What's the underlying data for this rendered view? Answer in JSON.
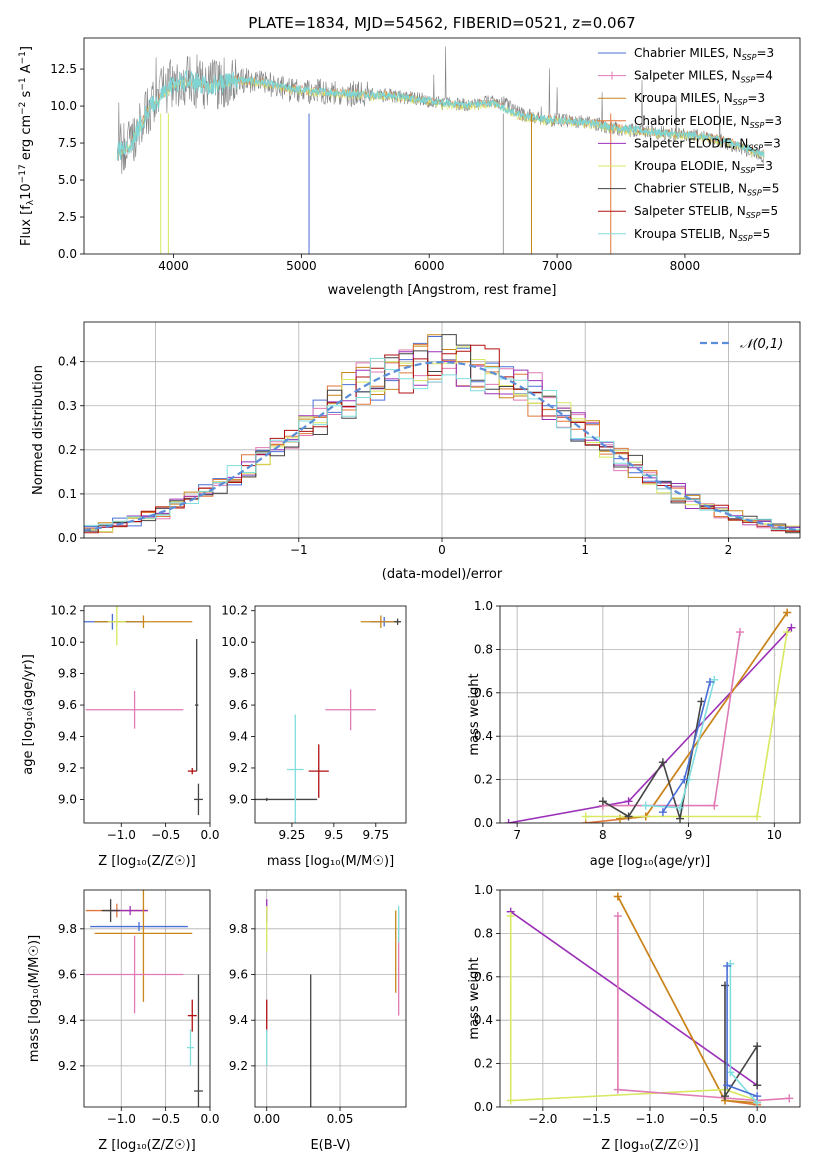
{
  "figure_title": "PLATE=1834, MJD=54562, FIBERID=0521, z=0.067",
  "legend_entries": [
    {
      "name": "Chabrier MILES",
      "nssp": "3",
      "color": "#4a6fd6"
    },
    {
      "name": "Salpeter MILES",
      "nssp": "4",
      "color": "#e07ab5"
    },
    {
      "name": "Kroupa MILES",
      "nssp": "3",
      "color": "#c8861a"
    },
    {
      "name": "Chabrier ELODIE",
      "nssp": "3",
      "color": "#e0773a"
    },
    {
      "name": "Salpeter ELODIE",
      "nssp": "3",
      "color": "#9b30b8"
    },
    {
      "name": "Kroupa ELODIE",
      "nssp": "3",
      "color": "#d8e860"
    },
    {
      "name": "Chabrier STELIB",
      "nssp": "5",
      "color": "#444444"
    },
    {
      "name": "Salpeter STELIB",
      "nssp": "5",
      "color": "#b01010"
    },
    {
      "name": "Kroupa STELIB",
      "nssp": "5",
      "color": "#80dede"
    }
  ],
  "colors": {
    "data": "#808080",
    "normal_curve": "#5b8ed8",
    "grid": "#b0b0b0",
    "model_main": "#7fd4d4"
  },
  "chart_data": [
    {
      "id": "spectrum",
      "type": "line",
      "title": "PLATE=1834, MJD=54562, FIBERID=0521, z=0.067",
      "xlabel": "wavelength [Angstrom, rest frame]",
      "ylabel": "Flux [f_λ10^-17 erg cm^-2 s^-1 A^-1]",
      "xlim": [
        3300,
        8900
      ],
      "ylim": [
        0,
        14.6
      ],
      "xticks": [
        4000,
        5000,
        6000,
        7000,
        8000
      ],
      "yticks": [
        0.0,
        2.5,
        5.0,
        7.5,
        10.0,
        12.5
      ],
      "grid": false,
      "legend": "top-right",
      "series": [
        {
          "name": "data",
          "x": [
            3560,
            3650,
            3800,
            3900,
            4000,
            4100,
            4300,
            4500,
            4700,
            4900,
            5100,
            5300,
            5500,
            5700,
            5900,
            6100,
            6300,
            6500,
            6600,
            6700,
            6900,
            7100,
            7300,
            7400,
            7500,
            7700,
            7900,
            8100,
            8300,
            8500,
            8600
          ],
          "y": [
            7.0,
            7.3,
            9.8,
            10.8,
            11.6,
            11.7,
            11.4,
            11.8,
            11.6,
            11.1,
            11.0,
            10.9,
            10.8,
            10.7,
            10.5,
            10.2,
            10.1,
            10.3,
            10.2,
            9.5,
            9.1,
            9.0,
            8.8,
            8.6,
            8.4,
            8.3,
            8.1,
            8.0,
            7.6,
            7.0,
            6.6
          ]
        },
        {
          "name": "model",
          "x": [
            3560,
            3650,
            3800,
            3900,
            4000,
            4100,
            4300,
            4500,
            4700,
            4900,
            5100,
            5300,
            5500,
            5700,
            5900,
            6100,
            6300,
            6500,
            6700,
            6900,
            7100,
            7300,
            7500,
            7700,
            7900,
            8100,
            8300,
            8500,
            8600
          ],
          "y": [
            6.9,
            7.2,
            9.7,
            10.6,
            11.5,
            11.7,
            11.4,
            11.8,
            11.6,
            11.2,
            11.0,
            10.9,
            10.8,
            10.7,
            10.5,
            10.2,
            10.1,
            10.2,
            9.4,
            9.1,
            9.0,
            8.8,
            8.5,
            8.3,
            8.1,
            8.0,
            7.7,
            7.1,
            6.8
          ]
        }
      ]
    },
    {
      "id": "residuals",
      "type": "bar",
      "xlabel": "(data-model)/error",
      "ylabel": "Normed distribution",
      "xlim": [
        -2.5,
        2.5
      ],
      "ylim": [
        0,
        0.49
      ],
      "xticks": [
        -2,
        -1,
        0,
        1,
        2
      ],
      "yticks": [
        0.0,
        0.1,
        0.2,
        0.3,
        0.4
      ],
      "grid": true,
      "legend": "top-right",
      "legend_label": "𝒩(0,1)",
      "bin_edges_start": -2.5,
      "bin_width": 0.1
    },
    {
      "id": "age-vs-Z",
      "type": "scatter",
      "xlabel": "Z [log₁₀(Z/Z☉)]",
      "ylabel": "age  [log₁₀(age/yr)]",
      "xlim": [
        -1.42,
        0.0
      ],
      "ylim": [
        8.85,
        10.23
      ],
      "xticks": [
        -1.0,
        -0.5,
        0.0
      ],
      "xticklabels": [
        "−1.0",
        "−0.5",
        "0.0"
      ],
      "yticks": [
        9.0,
        9.2,
        9.4,
        9.6,
        9.8,
        10.0,
        10.2
      ],
      "grid": false,
      "points": [
        {
          "series": "Chabrier MILES",
          "x": -1.1,
          "y": 10.13,
          "xerr": 0.35,
          "yerr": 0.05
        },
        {
          "series": "Kroupa MILES",
          "x": -0.75,
          "y": 10.13,
          "xerr": 0.55,
          "yerr": 0.04
        },
        {
          "series": "Salpeter MILES",
          "x": -0.85,
          "y": 9.57,
          "xerr": 0.55,
          "yerr": 0.12
        },
        {
          "series": "Chabrier STELIB",
          "x": -0.13,
          "y": 9.0,
          "xerr": 0.05,
          "yerr": 0.1
        },
        {
          "series": "Salpeter STELIB",
          "x": -0.2,
          "y": 9.18,
          "xerr": 0.05,
          "yerr": 0.02
        },
        {
          "series": "Kroupa ELODIE",
          "x": -1.05,
          "y": 10.13,
          "xerr": 0.1,
          "yerr": 0.15
        },
        {
          "series": "Chabrier STELIB",
          "x": -0.15,
          "y": 9.6,
          "xerr": 0.02,
          "yerr": 0.42
        }
      ]
    },
    {
      "id": "age-vs-mass",
      "type": "scatter",
      "xlabel": "mass [log₁₀(M/M☉)]",
      "ylabel": "",
      "xlim": [
        9.03,
        9.93
      ],
      "ylim": [
        8.85,
        10.23
      ],
      "xticks": [
        9.25,
        9.5,
        9.75
      ],
      "yticks": [
        9.0,
        9.2,
        9.4,
        9.6,
        9.8,
        10.0,
        10.2
      ],
      "grid": false,
      "points": [
        {
          "series": "Chabrier STELIB",
          "x": 9.1,
          "y": 9.0,
          "xerr": 0.3,
          "yerr": 0.01
        },
        {
          "series": "Kroupa STELIB",
          "x": 9.27,
          "y": 9.19,
          "xerr": 0.05,
          "yerr": 0.35
        },
        {
          "series": "Salpeter STELIB",
          "x": 9.41,
          "y": 9.18,
          "xerr": 0.06,
          "yerr": 0.17
        },
        {
          "series": "Salpeter MILES",
          "x": 9.6,
          "y": 9.57,
          "xerr": 0.15,
          "yerr": 0.13
        },
        {
          "series": "Chabrier MILES",
          "x": 9.8,
          "y": 10.13,
          "xerr": 0.08,
          "yerr": 0.03
        },
        {
          "series": "Kroupa MILES",
          "x": 9.78,
          "y": 10.13,
          "xerr": 0.12,
          "yerr": 0.04
        },
        {
          "series": "Chabrier STELIB",
          "x": 9.88,
          "y": 10.13,
          "xerr": 0.02,
          "yerr": 0.02
        }
      ]
    },
    {
      "id": "weight-vs-age",
      "type": "line",
      "xlabel": "age  [log₁₀(age/yr)]",
      "ylabel": "mass weight",
      "xlim": [
        6.8,
        10.3
      ],
      "ylim": [
        0,
        1.0
      ],
      "xticks": [
        7,
        8,
        9,
        10
      ],
      "yticks": [
        0.0,
        0.2,
        0.4,
        0.6,
        0.8,
        1.0
      ],
      "grid": true,
      "series": [
        {
          "name": "Salpeter ELODIE",
          "x": [
            6.9,
            8.3,
            10.2
          ],
          "y": [
            0.0,
            0.1,
            0.9
          ]
        },
        {
          "name": "Chabrier ELODIE",
          "x": [
            7.8,
            8.5,
            10.15
          ],
          "y": [
            0.0,
            0.03,
            0.97
          ]
        },
        {
          "name": "Kroupa MILES",
          "x": [
            8.2,
            8.5,
            10.15
          ],
          "y": [
            0.02,
            0.03,
            0.97
          ]
        },
        {
          "name": "Kroupa ELODIE",
          "x": [
            7.8,
            9.8,
            10.15
          ],
          "y": [
            0.03,
            0.03,
            0.88
          ]
        },
        {
          "name": "Salpeter MILES",
          "x": [
            8.0,
            9.3,
            9.6
          ],
          "y": [
            0.08,
            0.08,
            0.88
          ]
        },
        {
          "name": "Chabrier STELIB",
          "x": [
            8.0,
            8.3,
            8.7,
            8.9,
            9.15
          ],
          "y": [
            0.1,
            0.03,
            0.28,
            0.02,
            0.56
          ]
        },
        {
          "name": "Kroupa STELIB",
          "x": [
            8.5,
            8.9,
            9.0,
            9.3
          ],
          "y": [
            0.08,
            0.07,
            0.2,
            0.66
          ]
        },
        {
          "name": "Chabrier MILES",
          "x": [
            8.7,
            8.95,
            9.25
          ],
          "y": [
            0.05,
            0.2,
            0.65
          ]
        }
      ]
    },
    {
      "id": "mass-vs-Z",
      "type": "scatter",
      "xlabel": "Z [log₁₀(Z/Z☉)]",
      "ylabel": "mass [log₁₀(M/M☉)]",
      "xlim": [
        -1.42,
        0.0
      ],
      "ylim": [
        9.02,
        9.97
      ],
      "xticks": [
        -1.0,
        -0.5,
        0.0
      ],
      "xticklabels": [
        "−1.0",
        "−0.5",
        "0.0"
      ],
      "yticks": [
        9.2,
        9.4,
        9.6,
        9.8
      ],
      "grid": true,
      "points": [
        {
          "series": "Chabrier ELODIE",
          "x": -1.05,
          "y": 9.88,
          "xerr": 0.35,
          "yerr": 0.03
        },
        {
          "series": "Salpeter ELODIE",
          "x": -0.9,
          "y": 9.88,
          "xerr": 0.2,
          "yerr": 0.02
        },
        {
          "series": "Chabrier MILES",
          "x": -0.8,
          "y": 9.81,
          "xerr": 0.55,
          "yerr": 0.02
        },
        {
          "series": "Kroupa MILES",
          "x": -0.75,
          "y": 9.78,
          "xerr": 0.55,
          "yerr": 0.3
        },
        {
          "series": "Chabrier STELIB",
          "x": -1.12,
          "y": 9.88,
          "xerr": 0.1,
          "yerr": 0.05
        },
        {
          "series": "Salpeter MILES",
          "x": -0.85,
          "y": 9.6,
          "xerr": 0.55,
          "yerr": 0.17
        },
        {
          "series": "Salpeter STELIB",
          "x": -0.2,
          "y": 9.42,
          "xerr": 0.05,
          "yerr": 0.07
        },
        {
          "series": "Kroupa STELIB",
          "x": -0.22,
          "y": 9.28,
          "xerr": 0.04,
          "yerr": 0.08
        },
        {
          "series": "Chabrier STELIB",
          "x": -0.13,
          "y": 9.09,
          "xerr": 0.05,
          "yerr": 0.51
        }
      ]
    },
    {
      "id": "mass-vs-ebv",
      "type": "scatter",
      "xlabel": "E(B-V)",
      "ylabel": "",
      "xlim": [
        -0.008,
        0.095
      ],
      "ylim": [
        9.02,
        9.97
      ],
      "xticks": [
        0.0,
        0.05
      ],
      "xticklabels": [
        "0.00",
        "0.05"
      ],
      "yticks": [
        9.2,
        9.4,
        9.6,
        9.8
      ],
      "grid": true,
      "points": [
        {
          "series": "Chabrier STELIB",
          "x": 0.03,
          "y": 9.1,
          "xerr": 0.0,
          "yerr": 0.5
        },
        {
          "series": "Salpeter STELIB",
          "x": 0.0,
          "y": 9.42,
          "xerr": 0.0,
          "yerr": 0.07
        },
        {
          "series": "Kroupa STELIB",
          "x": 0.0,
          "y": 9.28,
          "xerr": 0.0,
          "yerr": 0.08
        },
        {
          "series": "Salpeter ELODIE",
          "x": 0.0,
          "y": 9.88,
          "xerr": 0.0,
          "yerr": 0.05
        },
        {
          "series": "Kroupa ELODIE",
          "x": 0.0,
          "y": 9.8,
          "xerr": 0.0,
          "yerr": 0.1
        },
        {
          "series": "Kroupa MILES",
          "x": 0.088,
          "y": 9.7,
          "xerr": 0.0,
          "yerr": 0.18
        },
        {
          "series": "Salpeter MILES",
          "x": 0.09,
          "y": 9.65,
          "xerr": 0.0,
          "yerr": 0.23
        },
        {
          "series": "Kroupa STELIB",
          "x": 0.09,
          "y": 9.82,
          "xerr": 0.0,
          "yerr": 0.08
        }
      ]
    },
    {
      "id": "weight-vs-Z",
      "type": "line",
      "xlabel": "Z [log₁₀(Z/Z☉)]",
      "ylabel": "mass weight",
      "xlim": [
        -2.4,
        0.4
      ],
      "ylim": [
        0,
        1.0
      ],
      "xticks": [
        -2.0,
        -1.5,
        -1.0,
        -0.5,
        0.0
      ],
      "xticklabels": [
        "−2.0",
        "−1.5",
        "−1.0",
        "−0.5",
        "0.0"
      ],
      "yticks": [
        0.0,
        0.2,
        0.4,
        0.6,
        0.8,
        1.0
      ],
      "grid": true,
      "series": [
        {
          "name": "Salpeter ELODIE",
          "x": [
            -2.3,
            0.0
          ],
          "y": [
            0.9,
            0.1
          ]
        },
        {
          "name": "Chabrier ELODIE",
          "x": [
            -1.3,
            -0.3,
            0.0
          ],
          "y": [
            0.97,
            0.03,
            0.01
          ]
        },
        {
          "name": "Kroupa MILES",
          "x": [
            -1.3,
            -0.3,
            0.0
          ],
          "y": [
            0.97,
            0.03,
            0.02
          ]
        },
        {
          "name": "Kroupa ELODIE",
          "x": [
            -2.3,
            -2.3,
            -0.3,
            0.0
          ],
          "y": [
            0.88,
            0.03,
            0.08,
            0.03
          ]
        },
        {
          "name": "Salpeter MILES",
          "x": [
            -1.3,
            -1.3,
            0.0,
            0.3
          ],
          "y": [
            0.88,
            0.08,
            0.03,
            0.04
          ]
        },
        {
          "name": "Chabrier STELIB",
          "x": [
            -0.3,
            -0.3,
            0.0,
            0.0
          ],
          "y": [
            0.56,
            0.05,
            0.28,
            0.1
          ]
        },
        {
          "name": "Kroupa STELIB",
          "x": [
            -0.25,
            -0.25,
            0.0
          ],
          "y": [
            0.66,
            0.16,
            0.02
          ]
        },
        {
          "name": "Chabrier MILES",
          "x": [
            -0.28,
            -0.28,
            0.0
          ],
          "y": [
            0.65,
            0.1,
            0.05
          ]
        }
      ]
    }
  ]
}
